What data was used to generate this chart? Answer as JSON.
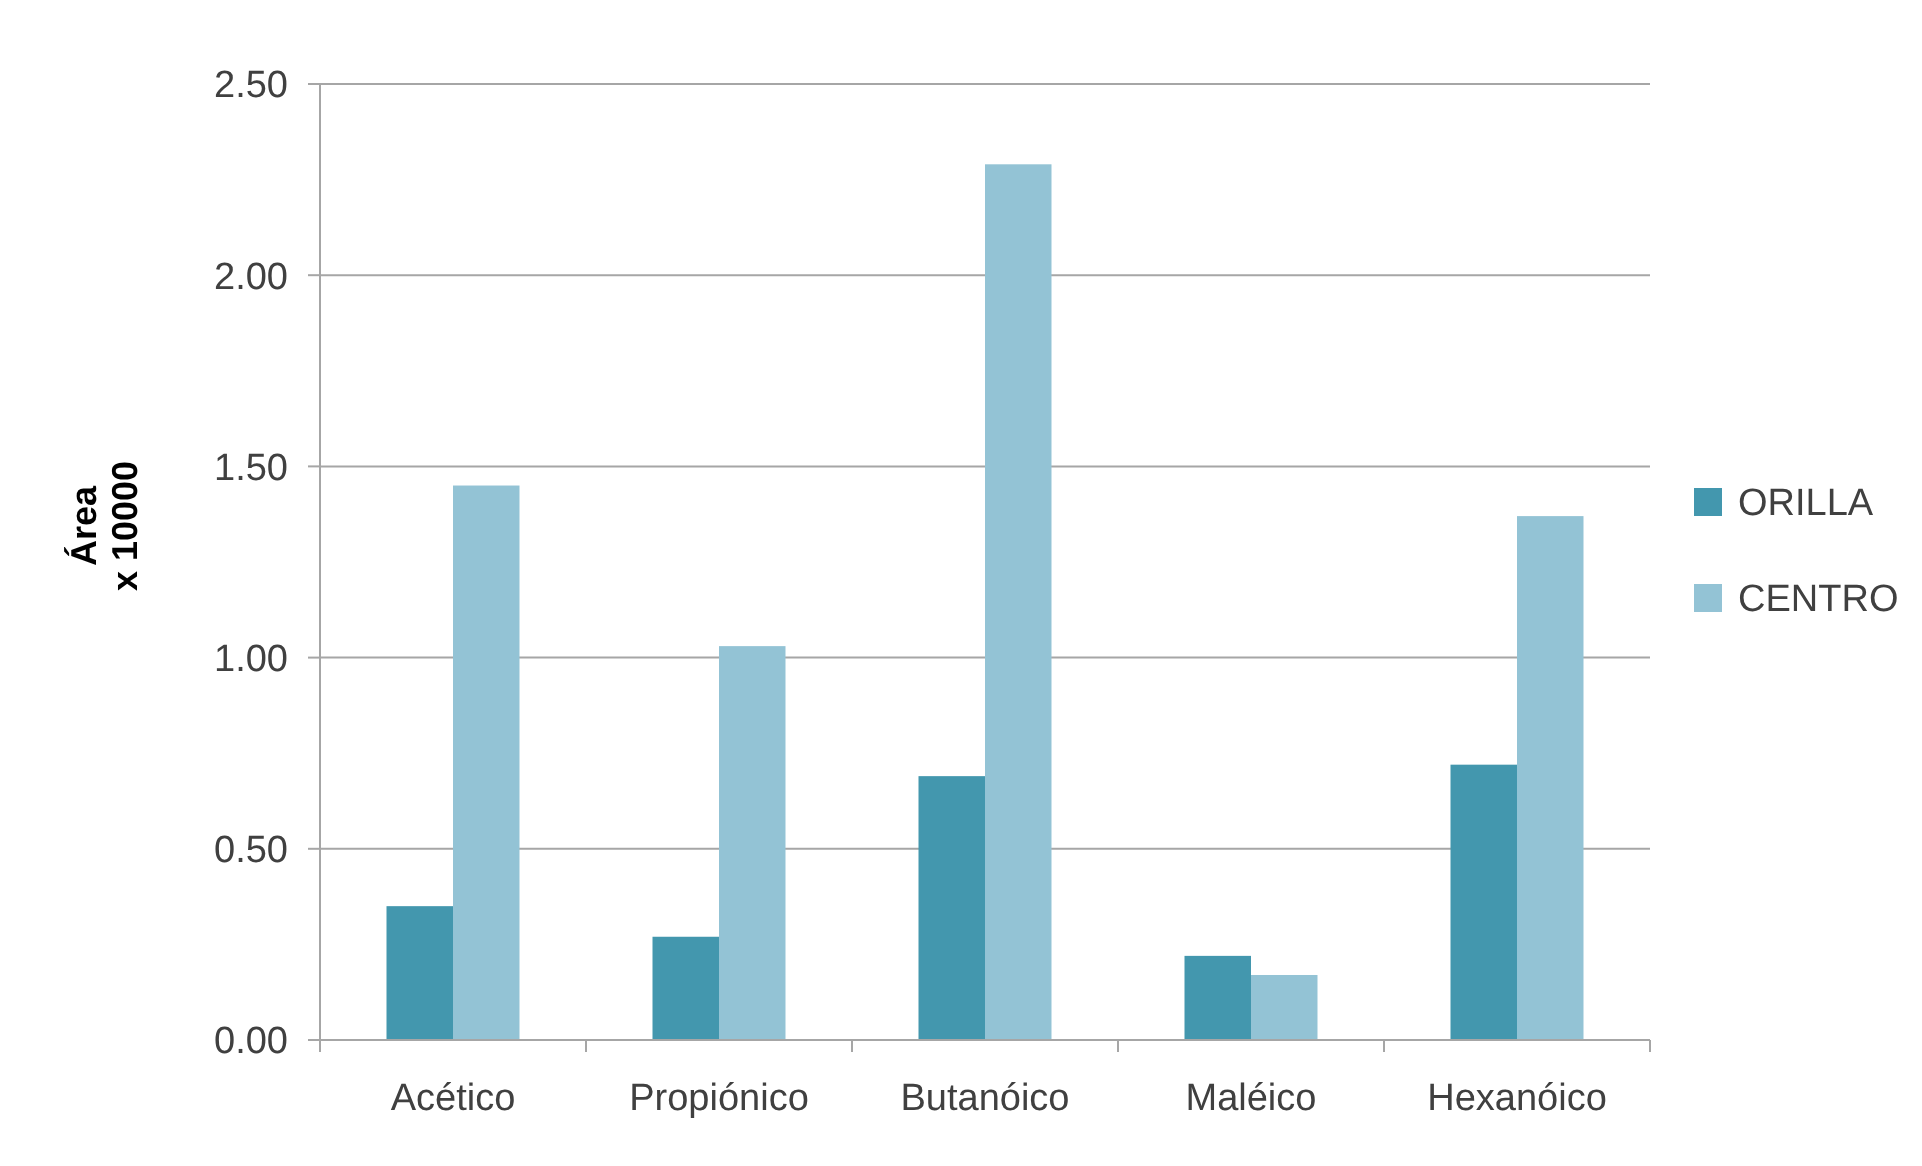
{
  "chart_data": {
    "type": "bar",
    "ylabel": "Área\nx 10000",
    "categories": [
      "Acético",
      "Propiónico",
      "Butanóico",
      "Maléico",
      "Hexanóico"
    ],
    "series": [
      {
        "name": "ORILLA",
        "color": "#4397ae",
        "values": [
          0.35,
          0.27,
          0.69,
          0.22,
          0.72
        ]
      },
      {
        "name": "CENTRO",
        "color": "#93c3d5",
        "values": [
          1.45,
          1.03,
          2.29,
          0.17,
          1.37
        ]
      }
    ],
    "ylim": [
      0,
      2.5
    ],
    "yticks": [
      {
        "value": 0,
        "label": "0.00"
      },
      {
        "value": 0.5,
        "label": "0.50"
      },
      {
        "value": 1,
        "label": "1.00"
      },
      {
        "value": 1.5,
        "label": "1.50"
      },
      {
        "value": 2,
        "label": "2.00"
      },
      {
        "value": 2.5,
        "label": "2.50"
      }
    ],
    "grid": "y",
    "legend": "right"
  }
}
